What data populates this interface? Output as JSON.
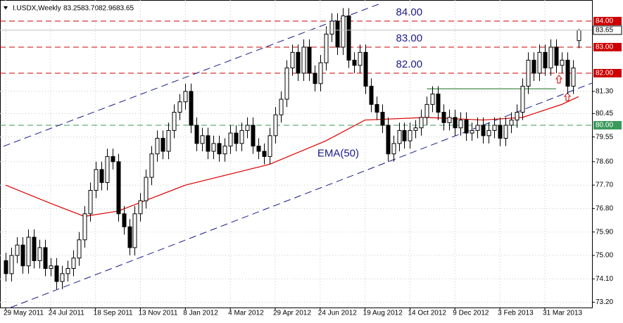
{
  "chart_data": {
    "type": "candlestick",
    "header": {
      "symbol": "I.USDX,Weekly",
      "ohlc": [
        "83.25",
        "83.70",
        "82.96",
        "83.65"
      ]
    },
    "xlim": [
      -1,
      104.4
    ],
    "ylim": [
      73.0,
      84.81
    ],
    "grid": true,
    "xticks": [
      {
        "value": 0,
        "label": "29 May 2011"
      },
      {
        "value": 8,
        "label": "24 Jul 2011"
      },
      {
        "value": 16,
        "label": "18 Sep 2011"
      },
      {
        "value": 24,
        "label": "13 Nov 2011"
      },
      {
        "value": 32,
        "label": "8 Jan 2012"
      },
      {
        "value": 40,
        "label": "4 Mar 2012"
      },
      {
        "value": 48,
        "label": "29 Apr 2012"
      },
      {
        "value": 56,
        "label": "24 Jun 2012"
      },
      {
        "value": 64,
        "label": "19 Aug 2012"
      },
      {
        "value": 72,
        "label": "14 Oct 2012"
      },
      {
        "value": 80,
        "label": "9 Dec 2012"
      },
      {
        "value": 88,
        "label": "3 Feb 2013"
      },
      {
        "value": 96,
        "label": "31 Mar 2013"
      }
    ],
    "yticks": [
      {
        "value": 73.2,
        "label": "73.20"
      },
      {
        "value": 74.1,
        "label": "74.10"
      },
      {
        "value": 75,
        "label": "75.00"
      },
      {
        "value": 75.9,
        "label": "75.90"
      },
      {
        "value": 76.8,
        "label": "76.80"
      },
      {
        "value": 77.7,
        "label": "77.70"
      },
      {
        "value": 78.6,
        "label": "78.60"
      },
      {
        "value": 79.55,
        "label": "79.55"
      },
      {
        "value": 80.45,
        "label": "80.45"
      },
      {
        "value": 81.3,
        "label": "81.30"
      }
    ],
    "open": [
      74.8,
      74.3,
      75.0,
      75.4,
      74.6,
      75.7,
      74.8,
      75.3,
      74.5,
      74.6,
      74.0,
      74.3,
      74.5,
      74.9,
      75.6,
      76.6,
      77.5,
      78.3,
      77.8,
      78.8,
      78.6,
      76.6,
      76.1,
      75.3,
      76.6,
      77.1,
      78.0,
      78.9,
      79.5,
      79.0,
      79.8,
      80.5,
      80.9,
      81.3,
      80.0,
      79.3,
      79.6,
      79.0,
      79.3,
      78.9,
      79.2,
      79.7,
      79.3,
      79.8,
      80.0,
      79.2,
      79.0,
      78.8,
      79.6,
      80.4,
      81.0,
      82.2,
      82.8,
      82.0,
      83.0,
      82.0,
      81.6,
      82.4,
      83.5,
      84.0,
      83.0,
      84.2,
      82.5,
      82.3,
      82.8,
      81.5,
      80.8,
      80.5,
      80.0,
      78.9,
      79.3,
      79.8,
      79.4,
      79.8,
      79.9,
      80.3,
      80.8,
      81.2,
      80.5,
      80.1,
      80.3,
      79.9,
      80.2,
      79.7,
      79.8,
      80.0,
      79.6,
      79.8,
      80.0,
      79.5,
      80.0,
      80.2,
      80.5,
      81.5,
      82.5,
      82.0,
      82.8,
      82.2,
      83.0,
      82.3,
      82.5,
      81.5,
      83.25
    ],
    "high": [
      75.1,
      75.3,
      75.7,
      75.7,
      76.0,
      76.0,
      75.6,
      75.6,
      74.9,
      74.9,
      74.6,
      74.8,
      75.2,
      75.9,
      76.9,
      77.8,
      78.6,
      78.6,
      79.1,
      79.1,
      78.9,
      76.9,
      76.4,
      76.9,
      77.4,
      78.3,
      79.2,
      79.8,
      79.8,
      80.1,
      80.8,
      81.2,
      81.6,
      81.6,
      80.3,
      79.9,
      79.9,
      79.6,
      79.6,
      79.5,
      80.0,
      80.0,
      80.1,
      80.3,
      80.3,
      79.5,
      79.3,
      79.9,
      80.7,
      81.3,
      82.5,
      83.1,
      83.1,
      83.3,
      83.3,
      82.3,
      82.7,
      83.8,
      84.3,
      84.3,
      84.5,
      84.5,
      82.8,
      83.1,
      83.1,
      81.8,
      81.1,
      80.8,
      80.3,
      79.6,
      80.1,
      80.1,
      80.1,
      80.2,
      80.6,
      81.1,
      81.5,
      81.5,
      80.8,
      80.6,
      80.6,
      80.5,
      80.5,
      80.1,
      80.3,
      80.3,
      80.1,
      80.3,
      80.3,
      80.3,
      80.5,
      80.8,
      81.8,
      82.8,
      82.8,
      83.1,
      83.1,
      83.3,
      83.3,
      82.8,
      82.8,
      82.5,
      83.7
    ],
    "low": [
      74.0,
      74.0,
      74.7,
      74.3,
      74.3,
      74.5,
      74.5,
      74.2,
      74.2,
      73.7,
      73.7,
      74.0,
      74.2,
      74.6,
      75.3,
      76.3,
      77.2,
      77.5,
      77.5,
      78.3,
      76.3,
      75.8,
      75.0,
      75.0,
      76.3,
      76.8,
      77.7,
      78.6,
      78.7,
      78.7,
      79.5,
      80.2,
      80.6,
      79.7,
      79.0,
      79.0,
      78.7,
      78.7,
      78.6,
      78.6,
      78.9,
      79.0,
      79.0,
      79.5,
      78.9,
      78.7,
      78.5,
      78.5,
      79.3,
      80.1,
      80.7,
      81.9,
      81.7,
      81.7,
      81.7,
      81.3,
      81.3,
      82.1,
      83.2,
      82.7,
      82.7,
      82.2,
      82.0,
      82.0,
      81.2,
      80.5,
      80.2,
      79.7,
      78.6,
      78.6,
      79.0,
      79.1,
      79.1,
      79.5,
      79.6,
      80.0,
      80.5,
      80.2,
      79.8,
      79.8,
      79.6,
      79.6,
      79.4,
      79.4,
      79.5,
      79.3,
      79.3,
      79.5,
      79.2,
      79.2,
      79.7,
      79.9,
      80.2,
      81.2,
      81.7,
      81.7,
      81.9,
      81.9,
      82.0,
      82.0,
      81.2,
      81.2,
      82.96
    ],
    "close": [
      74.3,
      75.0,
      75.4,
      74.6,
      75.7,
      74.8,
      75.3,
      74.5,
      74.6,
      74.0,
      74.3,
      74.5,
      74.9,
      75.6,
      76.6,
      77.5,
      78.3,
      77.8,
      78.8,
      78.6,
      76.6,
      76.1,
      75.3,
      76.6,
      77.1,
      78.0,
      78.9,
      79.5,
      79.0,
      79.8,
      80.5,
      80.9,
      81.3,
      80.0,
      79.3,
      79.6,
      79.0,
      79.3,
      78.9,
      79.2,
      79.7,
      79.3,
      79.8,
      80.0,
      79.2,
      79.0,
      78.8,
      79.6,
      80.4,
      81.0,
      82.2,
      82.8,
      82.0,
      83.0,
      82.0,
      81.6,
      82.4,
      83.5,
      84.0,
      83.0,
      84.2,
      82.5,
      82.3,
      82.8,
      81.5,
      80.8,
      80.5,
      80.0,
      78.9,
      79.3,
      79.8,
      79.4,
      79.8,
      79.9,
      80.3,
      80.8,
      81.2,
      80.5,
      80.1,
      80.3,
      79.9,
      80.2,
      79.7,
      79.8,
      80.0,
      79.6,
      79.8,
      80.0,
      79.5,
      80.0,
      80.2,
      80.5,
      81.5,
      82.5,
      82.0,
      82.8,
      82.2,
      83.0,
      82.3,
      82.5,
      81.5,
      82.2,
      83.65
    ],
    "current_price": 83.65,
    "ema": {
      "name": "EMA(50)",
      "color": "#dd0000",
      "x": [
        0,
        8,
        14,
        20,
        32,
        47,
        57,
        64,
        75,
        85,
        92,
        99,
        102
      ],
      "values": [
        77.7,
        77.0,
        76.5,
        76.7,
        77.7,
        78.5,
        79.4,
        80.2,
        80.3,
        80.2,
        80.3,
        80.8,
        81.1
      ]
    },
    "levels": [
      {
        "value": 84,
        "label": "84.00",
        "color": "#cc0000",
        "show_text": true
      },
      {
        "value": 83,
        "label": "83.00",
        "color": "#cc0000",
        "show_text": true
      },
      {
        "value": 82,
        "label": "82.00",
        "color": "#cc0000",
        "show_text": true
      },
      {
        "value": 80,
        "label": "80.00",
        "color": "#3a9a5a",
        "show_text": false
      }
    ],
    "channel": [
      {
        "x": [
          -0.4,
          66.8
        ],
        "values": [
          79.19,
          84.68
        ],
        "color": "#1a1a8c"
      },
      {
        "x": [
          0.9,
          104.4
        ],
        "values": [
          73.0,
          81.62
        ],
        "color": "#1a1a8c"
      }
    ],
    "resistance": {
      "x": [
        75,
        98
      ],
      "values": [
        81.4,
        81.4
      ],
      "color": "#2e7d32"
    }
  }
}
